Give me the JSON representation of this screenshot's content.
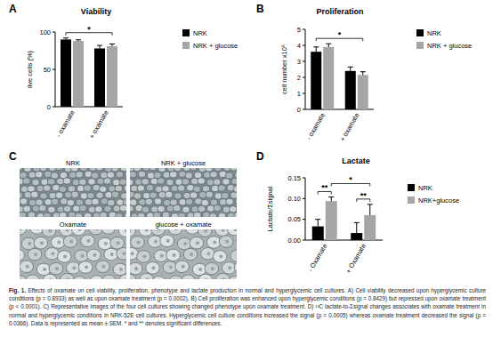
{
  "chart_data": [
    {
      "type": "bar",
      "panel_label": "A",
      "title": "Viability",
      "y_label": "live cells (%)",
      "categories": [
        "- oxamate",
        "+ oxamate"
      ],
      "series": [
        {
          "name": "NRK",
          "color": "#000000",
          "values": [
            90,
            78
          ],
          "errors": [
            2,
            4
          ]
        },
        {
          "name": "NRK + glucose",
          "color": "#a6a6a6",
          "values": [
            88,
            81
          ],
          "errors": [
            1.5,
            3
          ]
        }
      ],
      "ylim": [
        0,
        100
      ],
      "yticks": [
        0,
        50,
        100
      ],
      "legend": "right",
      "annotations": [
        {
          "text": "*",
          "from": [
            0,
            0
          ],
          "to": [
            1,
            1
          ]
        }
      ]
    },
    {
      "type": "bar",
      "panel_label": "B",
      "title": "Proliferation",
      "y_label": "cell number x10⁶",
      "categories": [
        "- oxamate",
        "+ oxamate"
      ],
      "series": [
        {
          "name": "NRK",
          "color": "#000000",
          "values": [
            3.6,
            2.4
          ],
          "errors": [
            0.3,
            0.25
          ]
        },
        {
          "name": "NRK + glucose",
          "color": "#a6a6a6",
          "values": [
            3.9,
            2.15
          ],
          "errors": [
            0.2,
            0.2
          ]
        }
      ],
      "ylim": [
        0,
        5
      ],
      "yticks": [
        0,
        1,
        2,
        3,
        4,
        5
      ],
      "legend": "right",
      "annotations": [
        {
          "text": "*",
          "from": [
            0,
            0
          ],
          "to": [
            1,
            1
          ]
        }
      ]
    },
    {
      "type": "bar",
      "panel_label": "D",
      "title": "Lactate",
      "y_label": "Lactate/Σsignal",
      "categories": [
        "- Oxamate",
        "+ Oxamate"
      ],
      "series": [
        {
          "name": "NRK",
          "color": "#000000",
          "values": [
            0.033,
            0.017
          ],
          "errors": [
            0.017,
            0.025
          ]
        },
        {
          "name": "NRK+glucose",
          "color": "#a6a6a6",
          "values": [
            0.094,
            0.06
          ],
          "errors": [
            0.01,
            0.026
          ]
        }
      ],
      "ylim": [
        0,
        0.15
      ],
      "yticks": [
        {
          "value": 0,
          "label": "0.00"
        },
        {
          "value": 0.05,
          "label": "0.05"
        },
        {
          "value": 0.1,
          "label": "0.10"
        },
        {
          "value": 0.15,
          "label": "0.15"
        }
      ],
      "legend": "right",
      "annotations": [
        {
          "text": "**",
          "from": [
            0,
            0
          ],
          "to": [
            0,
            1
          ]
        },
        {
          "text": "**",
          "from": [
            1,
            0
          ],
          "to": [
            1,
            1
          ]
        },
        {
          "text": "*",
          "from": [
            0,
            1
          ],
          "to": [
            1,
            1
          ]
        }
      ]
    }
  ],
  "panel_c": {
    "panel_label": "C",
    "images": [
      {
        "label": "NRK"
      },
      {
        "label": "NRK + glucose"
      },
      {
        "label": "Oxamate"
      },
      {
        "label": "glucose + oxamate"
      }
    ]
  },
  "caption": {
    "label": "Fig. 1.",
    "text": "Effects of oxamate on cell viability, proliferation, phenotype and lactate production in normal and hyperglycemic cell cultures. A) Cell viability decreased upon hyperglycemic culture conditions (p = 0.8933) as well as upon oxamate treatment (p = 0.0002). B) Cell proliferation was enhanced upon hyperglycemic conditions (p = 0.8429) but repressed upon oxamate treatment (p < 0.0001). C) Representative images of the four cell cultures showing changed phenotype upon oxamate treatment. D) ¹³C lactate-to-Σsignal changes associates with oxamate treatment in normal and hyperglycemic conditions in NRK-52E cell cultures. Hyperglycemic cell culture conditions increased the signal (p = 0.0005) whereas oxamate treatment decreased the signal (p = 0.0366). Data is represented as mean ± SEM. * and ** denotes significant differences."
  }
}
